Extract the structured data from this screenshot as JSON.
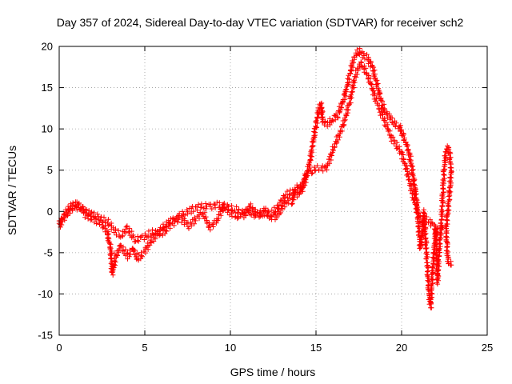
{
  "chart_data": {
    "type": "scatter",
    "title": "Day 357 of 2024, Sidereal Day-to-day VTEC variation (SDTVAR) for receiver sch2",
    "xlabel": "GPS time / hours",
    "ylabel": "SDTVAR / TECUs",
    "xlim": [
      0,
      25
    ],
    "ylim": [
      -15,
      20
    ],
    "xticks": [
      0,
      5,
      10,
      15,
      20,
      25
    ],
    "yticks": [
      -15,
      -10,
      -5,
      0,
      5,
      10,
      15,
      20
    ],
    "grid": true,
    "marker": "plus",
    "series": [
      {
        "name": "SDTVAR",
        "color": "#ff0000",
        "trace": [
          [
            0.0,
            -1.8
          ],
          [
            0.3,
            -0.5
          ],
          [
            0.6,
            0.5
          ],
          [
            1.0,
            1.0
          ],
          [
            1.3,
            0.5
          ],
          [
            1.5,
            -0.3
          ],
          [
            1.8,
            -0.8
          ],
          [
            2.1,
            -1.0
          ],
          [
            2.5,
            -1.5
          ],
          [
            2.8,
            -2.5
          ],
          [
            3.0,
            -4.5
          ],
          [
            3.1,
            -7.5
          ],
          [
            3.3,
            -5.5
          ],
          [
            3.6,
            -4.2
          ],
          [
            4.0,
            -5.5
          ],
          [
            4.3,
            -4.5
          ],
          [
            4.6,
            -5.8
          ],
          [
            5.0,
            -4.8
          ],
          [
            5.3,
            -3.8
          ],
          [
            5.8,
            -2.5
          ],
          [
            6.3,
            -1.5
          ],
          [
            6.8,
            -0.8
          ],
          [
            7.3,
            -0.3
          ],
          [
            7.8,
            0.3
          ],
          [
            8.3,
            0.6
          ],
          [
            8.8,
            0.6
          ],
          [
            9.3,
            0.8
          ],
          [
            9.8,
            0.2
          ],
          [
            10.3,
            -0.6
          ],
          [
            10.7,
            -0.5
          ],
          [
            11.0,
            0.0
          ],
          [
            11.5,
            -0.4
          ],
          [
            12.0,
            -0.2
          ],
          [
            12.4,
            -0.7
          ],
          [
            12.7,
            -0.6
          ],
          [
            13.0,
            0.4
          ],
          [
            13.3,
            1.4
          ],
          [
            13.6,
            1.0
          ],
          [
            13.8,
            2.8
          ],
          [
            14.0,
            3.2
          ],
          [
            14.2,
            2.6
          ],
          [
            14.4,
            4.0
          ],
          [
            14.6,
            5.5
          ],
          [
            14.8,
            8.0
          ],
          [
            15.0,
            10.5
          ],
          [
            15.2,
            12.8
          ],
          [
            15.3,
            13.0
          ],
          [
            15.4,
            10.8
          ],
          [
            15.7,
            10.6
          ],
          [
            16.0,
            11.2
          ],
          [
            16.3,
            11.8
          ],
          [
            16.6,
            13.5
          ],
          [
            16.8,
            15.0
          ],
          [
            17.0,
            16.8
          ],
          [
            17.2,
            18.5
          ],
          [
            17.5,
            19.5
          ],
          [
            17.7,
            19.0
          ],
          [
            18.0,
            18.6
          ],
          [
            18.3,
            17.5
          ],
          [
            18.6,
            15.0
          ],
          [
            18.8,
            13.5
          ],
          [
            19.0,
            12.2
          ],
          [
            19.3,
            11.5
          ],
          [
            19.6,
            10.5
          ],
          [
            19.9,
            10.2
          ],
          [
            20.1,
            9.0
          ],
          [
            20.3,
            8.0
          ],
          [
            20.5,
            6.5
          ],
          [
            20.7,
            4.0
          ],
          [
            20.9,
            1.0
          ],
          [
            21.0,
            -2.0
          ],
          [
            21.1,
            -4.5
          ],
          [
            21.2,
            -3.0
          ],
          [
            21.3,
            0.0
          ],
          [
            21.5,
            -6.5
          ],
          [
            21.6,
            -10.0
          ],
          [
            21.7,
            -11.5
          ],
          [
            21.8,
            -7.5
          ],
          [
            21.9,
            -5.0
          ],
          [
            22.0,
            -2.0
          ],
          [
            22.1,
            -8.5
          ],
          [
            22.2,
            -4.5
          ],
          [
            22.3,
            -2.5
          ],
          [
            22.4,
            2.0
          ],
          [
            22.5,
            5.5
          ],
          [
            22.6,
            7.5
          ],
          [
            22.7,
            7.8
          ],
          [
            22.8,
            7.0
          ],
          [
            22.9,
            5.0
          ],
          [
            22.8,
            2.0
          ],
          [
            22.6,
            -2.0
          ],
          [
            22.7,
            -6.0
          ],
          [
            22.9,
            -6.5
          ]
        ],
        "trace2": [
          [
            0.0,
            -1.5
          ],
          [
            0.2,
            -1.0
          ],
          [
            0.5,
            -0.2
          ],
          [
            0.8,
            0.6
          ],
          [
            1.2,
            0.4
          ],
          [
            1.6,
            0.0
          ],
          [
            2.0,
            -0.5
          ],
          [
            2.4,
            -0.8
          ],
          [
            2.8,
            -1.2
          ],
          [
            3.2,
            -2.2
          ],
          [
            3.6,
            -3.0
          ],
          [
            4.0,
            -2.0
          ],
          [
            4.4,
            -3.5
          ],
          [
            4.8,
            -3.2
          ],
          [
            5.2,
            -2.8
          ],
          [
            5.6,
            -2.4
          ],
          [
            6.0,
            -2.8
          ],
          [
            6.4,
            -1.8
          ],
          [
            6.8,
            -1.2
          ],
          [
            7.2,
            -1.0
          ],
          [
            7.6,
            -1.8
          ],
          [
            8.0,
            -0.8
          ],
          [
            8.4,
            -0.2
          ],
          [
            8.8,
            -2.0
          ],
          [
            9.2,
            -1.2
          ],
          [
            9.6,
            0.8
          ],
          [
            10.0,
            0.4
          ],
          [
            10.4,
            0.2
          ],
          [
            10.8,
            -0.3
          ],
          [
            11.2,
            0.6
          ],
          [
            11.6,
            -0.6
          ],
          [
            12.0,
            0.2
          ],
          [
            12.4,
            -0.3
          ],
          [
            12.8,
            0.6
          ],
          [
            13.2,
            2.0
          ],
          [
            13.6,
            2.3
          ],
          [
            14.0,
            2.0
          ],
          [
            14.4,
            4.5
          ],
          [
            14.8,
            5.0
          ],
          [
            15.2,
            5.3
          ],
          [
            15.6,
            5.2
          ],
          [
            16.0,
            7.5
          ],
          [
            16.3,
            9.0
          ],
          [
            16.6,
            10.5
          ],
          [
            17.0,
            13.5
          ],
          [
            17.3,
            16.5
          ],
          [
            17.6,
            18.0
          ],
          [
            17.9,
            17.0
          ],
          [
            18.2,
            15.5
          ],
          [
            18.5,
            13.5
          ],
          [
            18.8,
            12.0
          ],
          [
            19.1,
            10.5
          ],
          [
            19.4,
            9.0
          ],
          [
            19.7,
            8.0
          ],
          [
            20.0,
            7.0
          ],
          [
            20.3,
            5.0
          ],
          [
            20.6,
            2.5
          ],
          [
            20.9,
            0.0
          ],
          [
            21.2,
            -1.5
          ],
          [
            21.5,
            -1.0
          ],
          [
            21.8,
            -1.5
          ],
          [
            22.1,
            -2.5
          ],
          [
            22.4,
            -2.0
          ]
        ]
      }
    ]
  }
}
